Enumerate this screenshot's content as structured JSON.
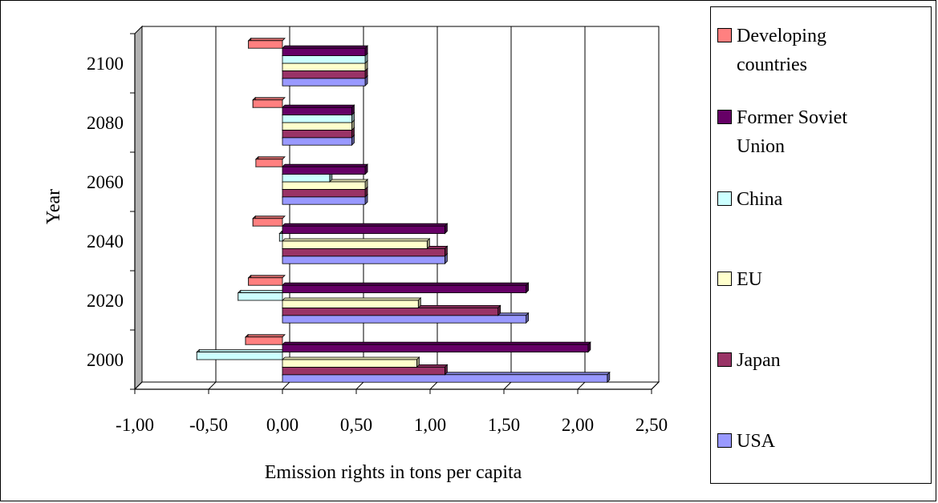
{
  "chart_data": {
    "type": "bar",
    "orientation": "horizontal",
    "style": "3d",
    "title": "",
    "xlabel": "Emission rights in tons per capita",
    "ylabel": "Year",
    "xlim": [
      -1.0,
      2.5
    ],
    "xticks": [
      "-1,00",
      "-0,50",
      "0,00",
      "0,50",
      "1,00",
      "1,50",
      "2,00",
      "2,50"
    ],
    "xtick_values": [
      -1.0,
      -0.5,
      0.0,
      0.5,
      1.0,
      1.5,
      2.0,
      2.5
    ],
    "grid": true,
    "legend_position": "right",
    "categories": [
      "2000",
      "2020",
      "2040",
      "2060",
      "2080",
      "2100"
    ],
    "series": [
      {
        "name": "USA",
        "color": "#9999ff",
        "values": [
          2.2,
          1.65,
          1.1,
          0.56,
          0.47,
          0.56
        ]
      },
      {
        "name": "Japan",
        "color": "#993366",
        "values": [
          1.1,
          1.46,
          1.1,
          0.56,
          0.47,
          0.56
        ]
      },
      {
        "name": "EU",
        "color": "#ffffcc",
        "values": [
          0.91,
          0.92,
          0.98,
          0.56,
          0.47,
          0.56
        ]
      },
      {
        "name": "China",
        "color": "#ccffff",
        "values": [
          -0.58,
          -0.3,
          -0.02,
          0.32,
          0.47,
          0.56
        ]
      },
      {
        "name": "Former Soviet Union",
        "color": "#660066",
        "values": [
          2.07,
          1.65,
          1.1,
          0.56,
          0.47,
          0.56
        ]
      },
      {
        "name": "Developing countries",
        "color": "#ff8080",
        "values": [
          -0.25,
          -0.23,
          -0.2,
          -0.18,
          -0.2,
          -0.23
        ]
      }
    ]
  },
  "legend": {
    "items": [
      {
        "label": "Developing countries",
        "color": "#ff8080"
      },
      {
        "label": "Former Soviet Union",
        "color": "#660066"
      },
      {
        "label": "China",
        "color": "#ccffff"
      },
      {
        "label": "EU",
        "color": "#ffffcc"
      },
      {
        "label": "Japan",
        "color": "#993366"
      },
      {
        "label": "USA",
        "color": "#9999ff"
      }
    ]
  }
}
